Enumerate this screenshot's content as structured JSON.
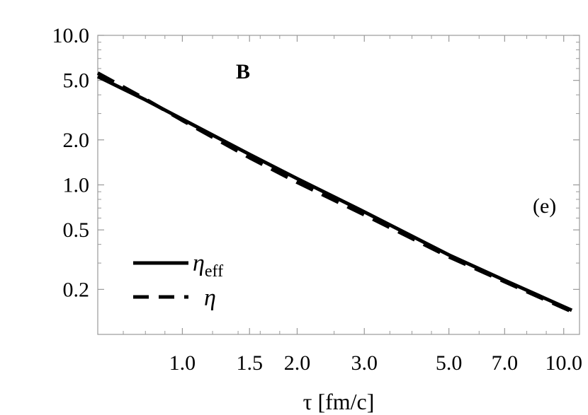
{
  "chart_data": {
    "type": "line",
    "xscale": "log",
    "yscale": "log",
    "xlim": [
      0.6,
      11.0
    ],
    "ylim": [
      0.1,
      10.0
    ],
    "xticks": [
      1.0,
      1.5,
      2.0,
      3.0,
      5.0,
      7.0,
      10.0
    ],
    "xtick_labels": [
      "1.0",
      "1.5",
      "2.0",
      "3.0",
      "5.0",
      "7.0",
      "10.0"
    ],
    "yticks": [
      0.2,
      0.5,
      1.0,
      2.0,
      5.0,
      10.0
    ],
    "ytick_labels": [
      "0.2",
      "0.5",
      "1.0",
      "2.0",
      "5.0",
      "10.0"
    ],
    "xlabel": "τ [fm/c]",
    "ylabel": "",
    "panel_label": "B",
    "annotation": "(e)",
    "legend_position": "bottom-left",
    "grid": false,
    "series": [
      {
        "name": "ηeff",
        "legend_symbol": "η",
        "legend_subscript": "eff",
        "style": "solid",
        "x": [
          0.6,
          0.8,
          1.0,
          1.5,
          2.0,
          3.0,
          5.0,
          7.0,
          10.5
        ],
        "y": [
          5.3,
          3.7,
          2.75,
          1.6,
          1.1,
          0.66,
          0.34,
          0.23,
          0.145
        ]
      },
      {
        "name": "η",
        "legend_symbol": "η",
        "legend_subscript": "",
        "style": "dashed",
        "x": [
          0.6,
          0.8,
          1.0,
          1.5,
          2.0,
          3.0,
          5.0,
          7.0,
          10.5
        ],
        "y": [
          5.6,
          3.75,
          2.7,
          1.52,
          1.04,
          0.63,
          0.33,
          0.225,
          0.142
        ]
      }
    ]
  }
}
